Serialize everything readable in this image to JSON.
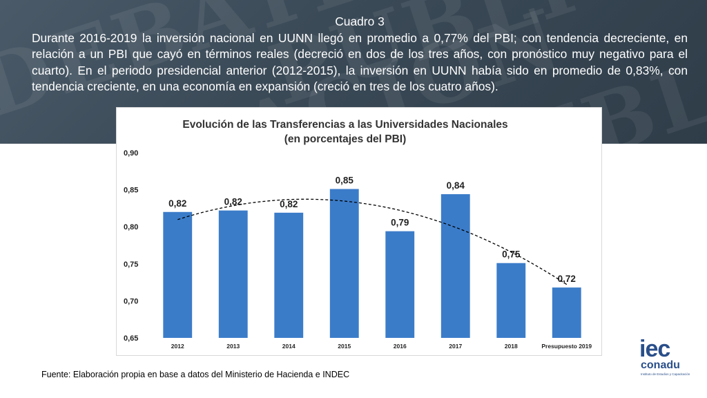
{
  "caption": {
    "title": "Cuadro 3",
    "body": "Durante 2016-2019 la inversión nacional  en UUNN llegó en promedio a 0,77% del PBI; con tendencia decreciente, en relación a un PBI que cayó en términos reales (decreció en dos de los tres años, con pronóstico muy negativo para el cuarto). En el periodo presidencial anterior (2012-2015), la inversión en UUNN había sido en promedio de 0,83%, con tendencia creciente, en una economía en expansión (creció en tres de los cuatro años)."
  },
  "source_note": "Fuente: Elaboración propia en base a datos del Ministerio de Hacienda e INDEC",
  "logo": {
    "line1": "iec",
    "line2": "conadu",
    "line3": "Instituto de Estudios y Capacitación"
  },
  "colors": {
    "bar": "#3b7cc9",
    "banner": "#3b4a57",
    "logo": "#2a4f8a"
  },
  "chart_data": {
    "type": "bar",
    "title": "Evolución de las Transferencias a las Universidades Nacionales",
    "subtitle": "(en porcentajes del PBI)",
    "categories": [
      "2012",
      "2013",
      "2014",
      "2015",
      "2016",
      "2017",
      "2018",
      "Presupuesto 2019"
    ],
    "values": [
      0.82,
      0.822,
      0.819,
      0.851,
      0.794,
      0.844,
      0.751,
      0.718
    ],
    "data_labels": [
      "0,82",
      "0,82",
      "0,82",
      "0,85",
      "0,79",
      "0,84",
      "0,75",
      "0,72"
    ],
    "ylim": [
      0.65,
      0.9
    ],
    "yticks": [
      0.65,
      0.7,
      0.75,
      0.8,
      0.85,
      0.9
    ],
    "ytick_labels": [
      "0,65",
      "0,70",
      "0,75",
      "0,80",
      "0,85",
      "0,90"
    ],
    "xlabel": "",
    "ylabel": "",
    "trendline": "polynomial dashed",
    "grid": false,
    "legend": "none"
  }
}
